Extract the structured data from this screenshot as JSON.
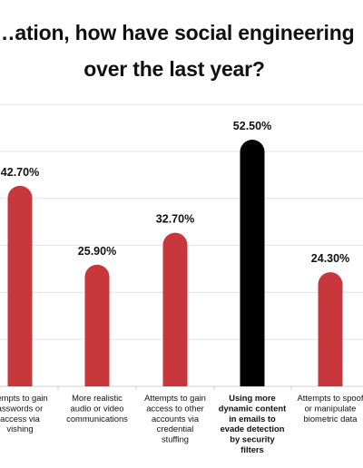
{
  "title": "…ation, how have social engineering … over the last year?",
  "chart_data": {
    "type": "bar",
    "title": "…ation, how have social engineering … over the last year?",
    "xlabel": "",
    "ylabel": "",
    "ylim": [
      0,
      60
    ],
    "grid": true,
    "legend": "none",
    "value_suffix": "%",
    "categories": [
      "Attempts to gain passwords or access via vishing",
      "More realistic audio or video communications",
      "Attempts to gain access to other accounts via credential stuffing",
      "Using more dynamic content in emails to evade detection by security filters",
      "Attempts to spoof or manipulate biometric data"
    ],
    "category_lines": [
      [
        "ttempts to gain",
        "asswords or",
        "access via",
        "vishing"
      ],
      [
        "More realistic",
        "audio or video",
        "communications"
      ],
      [
        "Attempts to gain",
        "access to other",
        "accounts via",
        "credential",
        "stuffing"
      ],
      [
        "Using more",
        "dynamic content",
        "in emails to",
        "evade detection",
        "by security",
        "filters"
      ],
      [
        "Attempts to spoof",
        "or manipulate",
        "biometric data"
      ]
    ],
    "values": [
      42.7,
      25.9,
      32.7,
      52.5,
      24.3
    ],
    "value_labels": [
      "42.70%",
      "25.90%",
      "32.70%",
      "52.50%",
      "24.30%"
    ],
    "highlight_index": 3,
    "colors": {
      "bar": "#c8373b",
      "highlight": "#000000",
      "grid": "#e3e3e3",
      "text": "#111111"
    }
  }
}
